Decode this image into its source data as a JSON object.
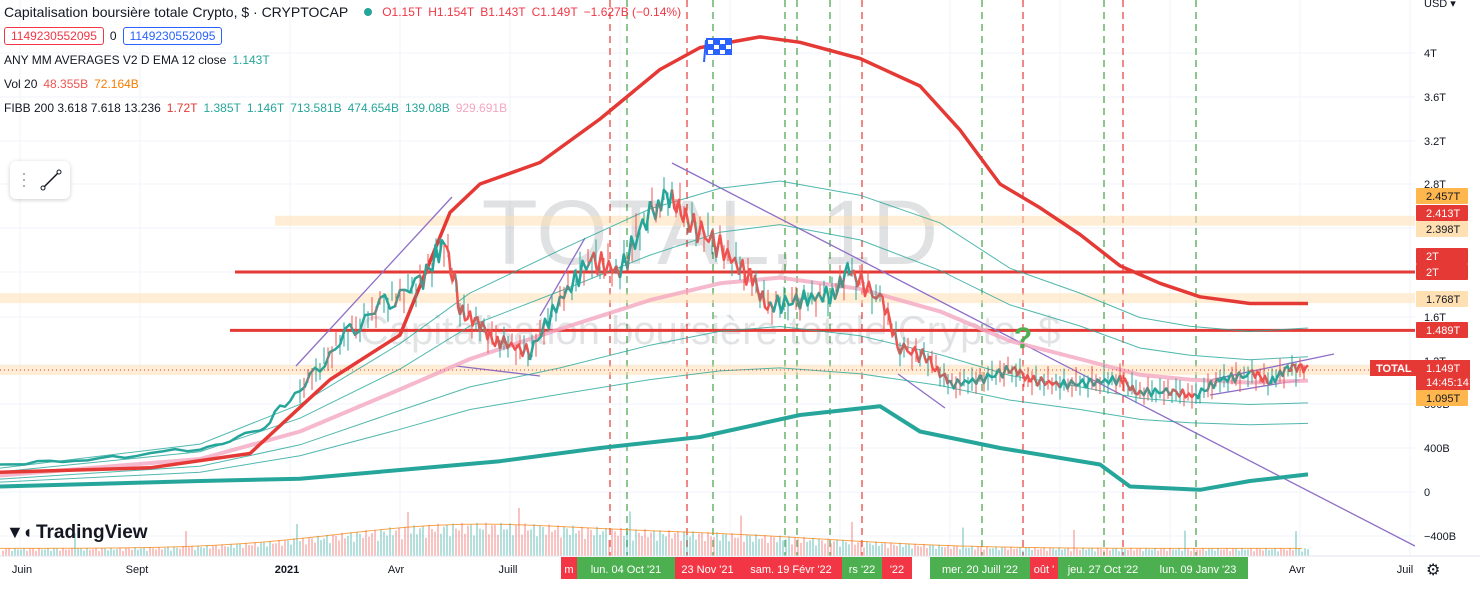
{
  "legend": {
    "title": "Capitalisation boursière totale Crypto, $ · CRYPTOCAP",
    "ohlc": [
      "O1.15T",
      "H1.154T",
      "B1.143T",
      "C1.149T",
      "−1.627B (−0.14%)"
    ],
    "input_left": "1149230552095",
    "input_mid": "0",
    "input_right": "1149230552095",
    "ma_label": "ANY MM AVERAGES V2 D EMA 12 close",
    "ma_value": "1.143T",
    "vol_label": "Vol 20",
    "vol_values": [
      "48.355B",
      "72.164B"
    ],
    "fib_label": "FIBB 200 3.618 7.618 13.236",
    "fib_values": [
      "1.72T",
      "1.385T",
      "1.146T",
      "713.581B",
      "474.654B",
      "139.08B",
      "929.691B"
    ]
  },
  "watermark": {
    "main": "TOTAL, 1D",
    "sub": "Capitalisation boursière totale Crypto, $"
  },
  "logo": "TradingView",
  "currency": "USD",
  "colors": {
    "up": "#26a69a",
    "down": "#ef5350",
    "red_line": "#e53935",
    "teal": "#26a69a",
    "pink": "#f4a6c1",
    "purple": "#8e6fc7",
    "green_dash": "#43a047",
    "red_dash": "#e53935"
  },
  "chart_data": {
    "type": "line",
    "x_axis_labels": [
      "Juin",
      "Sept",
      "2021",
      "Avr",
      "Juill",
      "Avr",
      "Juil"
    ],
    "y_axis_labels": [
      "4T",
      "3.6T",
      "3.2T",
      "2.8T",
      "1.6T",
      "1.2T",
      "800B",
      "400B",
      "0",
      "−400B"
    ],
    "price_tags": [
      "2.457T",
      "2.413T",
      "2.398T",
      "2T",
      "2T",
      "1.768T",
      "1.489T",
      "1.095T"
    ],
    "current_tag": {
      "label": "TOTAL",
      "value": "1.149T",
      "countdown": "14:45:14"
    },
    "date_tags": [
      {
        "text": "m",
        "color": "red"
      },
      {
        "text": "lun. 04 Oct '21",
        "color": "green"
      },
      {
        "text": "23 Nov '21",
        "color": "red"
      },
      {
        "text": "sam. 19 Févr '22",
        "color": "red"
      },
      {
        "text": "rs '22",
        "color": "green"
      },
      {
        "text": "'22",
        "color": "red"
      },
      {
        "text": "mer. 20 Juill '22",
        "color": "green"
      },
      {
        "text": "oût '",
        "color": "red"
      },
      {
        "text": "jeu. 27 Oct '22",
        "color": "green"
      },
      {
        "text": "lun. 09 Janv '23",
        "color": "green"
      }
    ],
    "horizontal_levels": [
      2.0,
      1.489
    ],
    "highlight_levels": [
      2.413,
      1.768,
      1.149
    ],
    "x_range": [
      0,
      1480
    ],
    "series": [
      {
        "name": "",
        "points": [
          [
            0,
            0.25
          ],
          [
            100,
            0.3
          ],
          [
            200,
            0.4
          ],
          [
            260,
            0.55
          ],
          [
            300,
            0.95
          ],
          [
            340,
            1.4
          ],
          [
            380,
            1.7
          ],
          [
            420,
            1.9
          ],
          [
            445,
            2.25
          ],
          [
            460,
            1.7
          ],
          [
            480,
            1.5
          ],
          [
            500,
            1.4
          ],
          [
            530,
            1.3
          ],
          [
            560,
            1.75
          ],
          [
            590,
            2.1
          ],
          [
            620,
            2.0
          ],
          [
            650,
            2.5
          ],
          [
            672,
            2.7
          ],
          [
            690,
            2.4
          ],
          [
            720,
            2.2
          ],
          [
            750,
            1.95
          ],
          [
            770,
            1.7
          ],
          [
            800,
            1.75
          ],
          [
            830,
            1.8
          ],
          [
            850,
            2.0
          ],
          [
            880,
            1.75
          ],
          [
            900,
            1.35
          ],
          [
            930,
            1.25
          ],
          [
            950,
            1.0
          ],
          [
            980,
            1.05
          ],
          [
            1010,
            1.15
          ],
          [
            1030,
            1.05
          ],
          [
            1060,
            1.0
          ],
          [
            1090,
            1.02
          ],
          [
            1120,
            1.05
          ],
          [
            1140,
            0.92
          ],
          [
            1170,
            0.93
          ],
          [
            1195,
            0.88
          ],
          [
            1220,
            1.05
          ],
          [
            1250,
            1.1
          ],
          [
            1270,
            1.05
          ],
          [
            1290,
            1.15
          ],
          [
            1308,
            1.149
          ]
        ]
      },
      {
        "name": "",
        "points": [
          [
            0,
            0.18
          ],
          [
            150,
            0.22
          ],
          [
            250,
            0.35
          ],
          [
            330,
            1.05
          ],
          [
            400,
            1.45
          ],
          [
            450,
            2.5
          ],
          [
            480,
            2.8
          ],
          [
            540,
            3.0
          ],
          [
            600,
            3.4
          ],
          [
            660,
            3.85
          ],
          [
            700,
            4.05
          ],
          [
            760,
            4.15
          ],
          [
            800,
            4.1
          ],
          [
            860,
            3.95
          ],
          [
            920,
            3.7
          ],
          [
            960,
            3.3
          ],
          [
            1000,
            2.8
          ],
          [
            1040,
            2.55
          ],
          [
            1080,
            2.3
          ],
          [
            1120,
            2.05
          ],
          [
            1160,
            1.9
          ],
          [
            1200,
            1.78
          ],
          [
            1250,
            1.72
          ],
          [
            1308,
            1.72
          ]
        ]
      },
      {
        "name": "",
        "points": [
          [
            0,
            0.05
          ],
          [
            200,
            0.1
          ],
          [
            300,
            0.12
          ],
          [
            400,
            0.2
          ],
          [
            500,
            0.28
          ],
          [
            600,
            0.4
          ],
          [
            700,
            0.5
          ],
          [
            800,
            0.7
          ],
          [
            880,
            0.78
          ],
          [
            920,
            0.55
          ],
          [
            1000,
            0.4
          ],
          [
            1100,
            0.25
          ],
          [
            1130,
            0.05
          ],
          [
            1200,
            0.02
          ],
          [
            1250,
            0.1
          ],
          [
            1308,
            0.16
          ]
        ]
      },
      {
        "name": "",
        "points": [
          [
            0,
            0.15
          ],
          [
            200,
            0.3
          ],
          [
            300,
            0.55
          ],
          [
            400,
            0.95
          ],
          [
            470,
            1.25
          ],
          [
            560,
            1.5
          ],
          [
            650,
            1.75
          ],
          [
            720,
            1.9
          ],
          [
            780,
            1.95
          ],
          [
            860,
            1.85
          ],
          [
            940,
            1.65
          ],
          [
            1010,
            1.4
          ],
          [
            1080,
            1.25
          ],
          [
            1140,
            1.1
          ],
          [
            1190,
            1.05
          ],
          [
            1250,
            1.02
          ],
          [
            1308,
            1.04
          ]
        ]
      }
    ]
  }
}
